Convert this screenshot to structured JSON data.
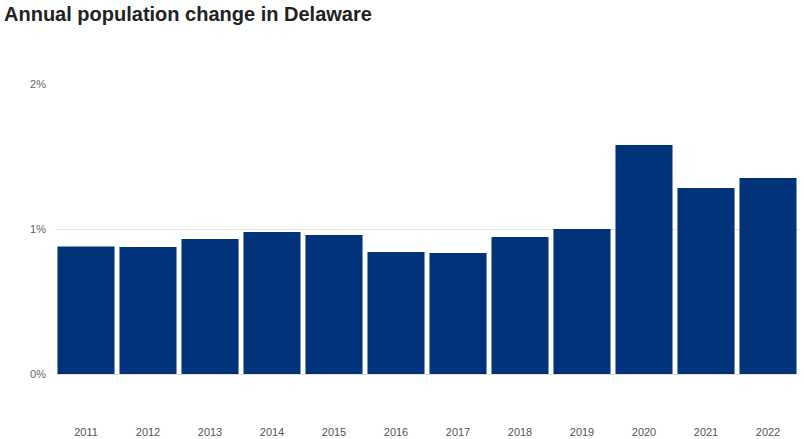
{
  "chart_data": {
    "type": "bar",
    "title": "Annual population change in Delaware",
    "categories": [
      "2011",
      "2012",
      "2013",
      "2014",
      "2015",
      "2016",
      "2017",
      "2018",
      "2019",
      "2020",
      "2021",
      "2022"
    ],
    "values": [
      0.88,
      0.876,
      0.931,
      0.979,
      0.959,
      0.841,
      0.834,
      0.945,
      1.0,
      1.579,
      1.283,
      1.352
    ],
    "color": "#00337a",
    "ylim": [
      0,
      2
    ],
    "yticks": [
      {
        "value": 0,
        "label": "0%"
      },
      {
        "value": 1,
        "label": "1%"
      },
      {
        "value": 2,
        "label": "2%"
      }
    ],
    "grid": true
  }
}
